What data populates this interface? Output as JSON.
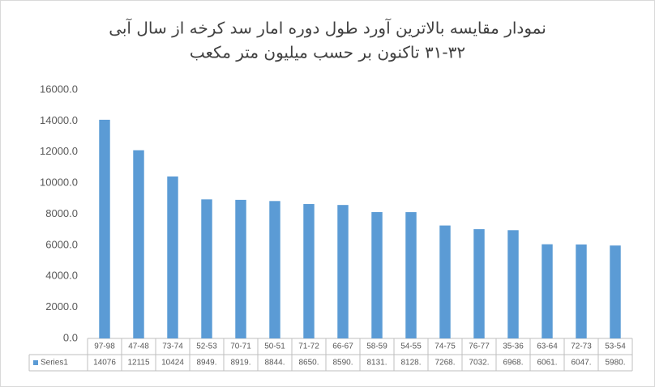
{
  "chart_data": {
    "type": "bar",
    "title": [
      "نمودار مقایسه بالاترین آورد طول دوره امار سد کرخه از سال آبی",
      "۳۱-۳۲ تاکنون بر حسب میلیون متر مکعب"
    ],
    "categories": [
      "97-98",
      "47-48",
      "73-74",
      "52-53",
      "70-71",
      "50-51",
      "71-72",
      "66-67",
      "58-59",
      "54-55",
      "74-75",
      "76-77",
      "35-36",
      "63-64",
      "72-73",
      "53-54"
    ],
    "series": [
      {
        "name": "Series1",
        "color": "#5b9bd5",
        "values": [
          14076,
          12115,
          10424,
          8949,
          8919,
          8844,
          8650,
          8590,
          8131,
          8128,
          7268,
          7032,
          6968,
          6061,
          6047,
          5980
        ],
        "value_labels": [
          "14076",
          "12115",
          "10424",
          "8949.",
          "8919.",
          "8844.",
          "8650.",
          "8590.",
          "8131.",
          "8128.",
          "7268.",
          "7032.",
          "6968.",
          "6061.",
          "6047.",
          "5980."
        ]
      }
    ],
    "ylim": [
      0,
      16000
    ],
    "yticks": [
      {
        "value": 0,
        "label": "0.0"
      },
      {
        "value": 2000,
        "label": "2000.0"
      },
      {
        "value": 4000,
        "label": "4000.0"
      },
      {
        "value": 6000,
        "label": "6000.0"
      },
      {
        "value": 8000,
        "label": "8000.0"
      },
      {
        "value": 10000,
        "label": "10000.0"
      },
      {
        "value": 12000,
        "label": "12000.0"
      },
      {
        "value": 14000,
        "label": "14000.0"
      },
      {
        "value": 16000,
        "label": "16000.0"
      }
    ],
    "grid": false
  }
}
